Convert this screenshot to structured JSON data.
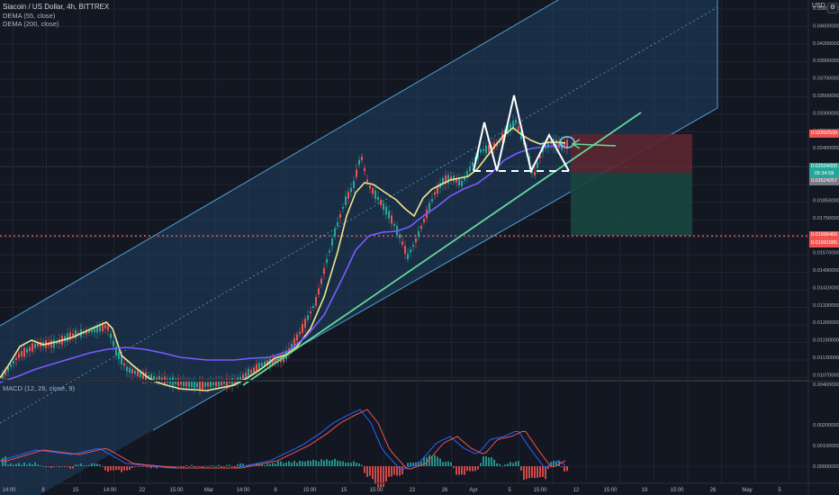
{
  "header": {
    "symbol": "Siacoin / US Dollar, 4h, BITTREX",
    "indicators": [
      "DEMA (55, close)",
      "DEMA (200, close)"
    ],
    "currency": "USD",
    "corner_icon": "gear-icon"
  },
  "macd": {
    "title": "MACD (12, 26, close, 9)",
    "axis_ticks": [
      "0.00400000",
      "0.00200000",
      "0.00100000",
      "0.00000000"
    ]
  },
  "price_axis": {
    "ticks": [
      "0.05000000",
      "0.04600000",
      "0.04200000",
      "0.03900000",
      "0.03700000",
      "0.03500000",
      "0.03300000",
      "0.02900000",
      "0.02400000",
      "0.02250000",
      "0.02100000",
      "0.01850000",
      "0.01750000",
      "0.01650000",
      "0.01570000",
      "0.01490000",
      "0.01410000",
      "0.01330000",
      "0.01260000",
      "0.01190000",
      "0.01130000",
      "0.01070000"
    ],
    "labels": [
      {
        "text": "0.02992539",
        "color": "#ef5350"
      },
      {
        "text": "0.02694000",
        "color": "#26a69a"
      },
      {
        "text": "05:34:58",
        "color": "#26a69a"
      },
      {
        "text": "0.02624257",
        "color": "#787b86"
      },
      {
        "text": "0.01996456",
        "color": "#ef5350"
      },
      {
        "text": "0.01991585",
        "color": "#ef5350"
      }
    ]
  },
  "time_axis": {
    "ticks": [
      "14:00",
      "8",
      "15",
      "14:00",
      "22",
      "15:00",
      "Mar",
      "14:00",
      "8",
      "15:00",
      "15",
      "15:00",
      "22",
      "26",
      "Apr",
      "5",
      "15:00",
      "12",
      "15:00",
      "19",
      "15:00",
      "26",
      "May",
      "5"
    ]
  },
  "colors": {
    "background": "#131722",
    "channel": "#4fa3d1",
    "dema55": "#f0e68c",
    "dema200": "#7a5cff",
    "trendline": "#66d99a",
    "stop": "#ef5350",
    "target": "#26a69a",
    "up_candle": "#26a69a",
    "down_candle": "#ef5350"
  }
}
